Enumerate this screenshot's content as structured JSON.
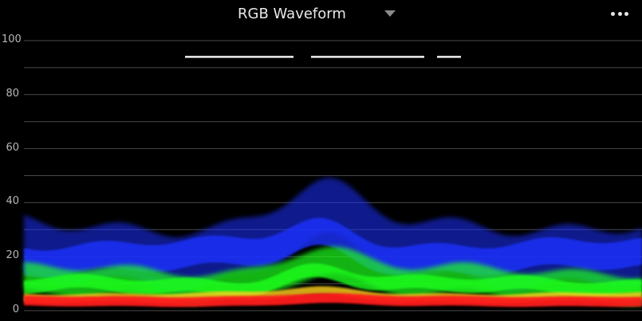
{
  "header": {
    "title": "RGB Waveform",
    "dropdown_icon": "chevron-down-icon",
    "more_icon": "more-horizontal-icon"
  },
  "scope": {
    "y_ticks": [
      "100",
      "80",
      "60",
      "40",
      "20",
      "0"
    ],
    "y_tick_values": [
      100,
      80,
      60,
      40,
      20,
      0
    ],
    "grid_values": [
      100,
      90,
      80,
      70,
      60,
      50,
      40,
      30,
      20,
      10,
      0
    ],
    "y_range": [
      0,
      100
    ],
    "colors": {
      "red": "#ff1a1a",
      "green": "#1aff1a",
      "blue": "#1a33ff",
      "grid": "#4a4a4a"
    }
  }
}
